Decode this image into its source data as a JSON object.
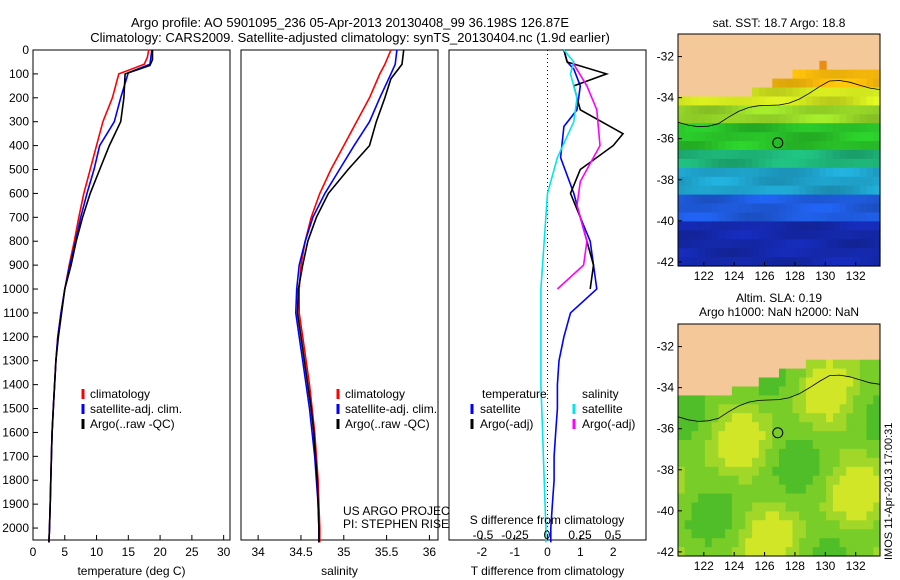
{
  "header": {
    "line1": "Argo profile: AO 5901095_236 05-Apr-2013 20130408_99 36.198S 126.87E",
    "line2": "Climatology: CARS2009. Satellite-adjusted climatology: synTS_20130404.nc (1.9d earlier)"
  },
  "colors": {
    "climatology": "#ff0000",
    "satellite": "#0000ff",
    "argo": "#000000",
    "sat_salinity": "#00e5ee",
    "argo_salinity": "#ff00ff",
    "land": "#f5c89a"
  },
  "chart_data": [
    {
      "type": "line",
      "id": "temperature",
      "xlabel": "temperature (deg C)",
      "xlim": [
        0,
        31
      ],
      "ylim": [
        2050,
        0
      ],
      "xticks": [
        0,
        5,
        10,
        15,
        20,
        25,
        30
      ],
      "yticks": [
        0,
        100,
        200,
        300,
        400,
        500,
        600,
        700,
        800,
        900,
        1000,
        1100,
        1200,
        1300,
        1400,
        1500,
        1600,
        1700,
        1800,
        1900,
        2000
      ],
      "legend": [
        "climatology",
        "satellite-adj. clim.",
        "Argo(..raw -QC)"
      ],
      "series": [
        {
          "name": "climatology",
          "color": "#ff0000",
          "points": [
            [
              18.2,
              0
            ],
            [
              18.0,
              30
            ],
            [
              17.5,
              60
            ],
            [
              13.5,
              100
            ],
            [
              12.5,
              200
            ],
            [
              11.0,
              300
            ],
            [
              10.0,
              400
            ],
            [
              9.0,
              500
            ],
            [
              8.0,
              600
            ],
            [
              7.2,
              700
            ],
            [
              6.5,
              800
            ],
            [
              5.7,
              900
            ],
            [
              5.0,
              1000
            ],
            [
              4.4,
              1100
            ],
            [
              3.9,
              1200
            ],
            [
              3.6,
              1300
            ],
            [
              3.4,
              1400
            ],
            [
              3.2,
              1500
            ],
            [
              3.0,
              1600
            ],
            [
              2.9,
              1700
            ],
            [
              2.8,
              1800
            ],
            [
              2.7,
              1900
            ],
            [
              2.6,
              2000
            ],
            [
              2.5,
              2060
            ]
          ]
        },
        {
          "name": "satellite-adj. clim.",
          "color": "#0000ff",
          "points": [
            [
              18.7,
              0
            ],
            [
              18.6,
              20
            ],
            [
              18.4,
              60
            ],
            [
              15.0,
              95
            ],
            [
              13.8,
              200
            ],
            [
              12.8,
              300
            ],
            [
              10.5,
              400
            ],
            [
              9.6,
              500
            ],
            [
              8.5,
              600
            ],
            [
              7.5,
              700
            ],
            [
              6.7,
              800
            ],
            [
              5.8,
              900
            ],
            [
              5.0,
              1000
            ],
            [
              4.4,
              1100
            ],
            [
              3.9,
              1200
            ],
            [
              3.6,
              1300
            ],
            [
              3.4,
              1400
            ],
            [
              3.2,
              1500
            ],
            [
              3.0,
              1600
            ],
            [
              2.9,
              1700
            ],
            [
              2.8,
              1800
            ],
            [
              2.7,
              1900
            ],
            [
              2.6,
              2000
            ],
            [
              2.5,
              2060
            ]
          ]
        },
        {
          "name": "Argo(..raw -QC)",
          "color": "#000000",
          "points": [
            [
              18.8,
              0
            ],
            [
              18.8,
              40
            ],
            [
              18.4,
              65
            ],
            [
              14.5,
              100
            ],
            [
              14.3,
              200
            ],
            [
              13.8,
              300
            ],
            [
              12.0,
              400
            ],
            [
              10.5,
              500
            ],
            [
              9.0,
              600
            ],
            [
              7.8,
              700
            ],
            [
              6.8,
              800
            ],
            [
              6.0,
              900
            ],
            [
              5.0,
              1000
            ],
            [
              4.5,
              1100
            ],
            [
              4.0,
              1200
            ],
            [
              3.6,
              1300
            ],
            [
              3.4,
              1400
            ],
            [
              3.2,
              1500
            ],
            [
              3.0,
              1600
            ],
            [
              2.9,
              1700
            ],
            [
              2.8,
              1800
            ],
            [
              2.7,
              1900
            ],
            [
              2.6,
              2000
            ],
            [
              2.5,
              2060
            ]
          ]
        }
      ]
    },
    {
      "type": "line",
      "id": "salinity",
      "xlabel": "salinity",
      "xlim": [
        33.8,
        36.1
      ],
      "ylim": [
        2050,
        0
      ],
      "xticks": [
        34,
        34.5,
        35,
        35.5,
        36
      ],
      "legend": [
        "climatology",
        "satellite-adj. clim.",
        "Argo(..raw -QC)"
      ],
      "annotation": [
        "US ARGO PROJECT",
        "PI: STEPHEN RISER"
      ],
      "series": [
        {
          "name": "climatology",
          "color": "#ff0000",
          "points": [
            [
              35.55,
              0
            ],
            [
              35.48,
              60
            ],
            [
              35.42,
              100
            ],
            [
              35.3,
              200
            ],
            [
              35.15,
              300
            ],
            [
              35.0,
              400
            ],
            [
              34.85,
              500
            ],
            [
              34.72,
              600
            ],
            [
              34.62,
              700
            ],
            [
              34.55,
              800
            ],
            [
              34.5,
              900
            ],
            [
              34.48,
              1000
            ],
            [
              34.48,
              1100
            ],
            [
              34.52,
              1200
            ],
            [
              34.56,
              1300
            ],
            [
              34.6,
              1400
            ],
            [
              34.63,
              1500
            ],
            [
              34.66,
              1600
            ],
            [
              34.68,
              1700
            ],
            [
              34.7,
              1800
            ],
            [
              34.71,
              1900
            ],
            [
              34.72,
              2000
            ],
            [
              34.72,
              2060
            ]
          ]
        },
        {
          "name": "satellite-adj. clim.",
          "color": "#0000ff",
          "points": [
            [
              35.62,
              0
            ],
            [
              35.6,
              60
            ],
            [
              35.55,
              100
            ],
            [
              35.42,
              200
            ],
            [
              35.3,
              300
            ],
            [
              35.12,
              400
            ],
            [
              34.95,
              500
            ],
            [
              34.78,
              600
            ],
            [
              34.64,
              700
            ],
            [
              34.55,
              800
            ],
            [
              34.48,
              900
            ],
            [
              34.45,
              1000
            ],
            [
              34.44,
              1100
            ],
            [
              34.48,
              1200
            ],
            [
              34.52,
              1300
            ],
            [
              34.56,
              1400
            ],
            [
              34.6,
              1500
            ],
            [
              34.63,
              1600
            ],
            [
              34.66,
              1700
            ],
            [
              34.68,
              1800
            ],
            [
              34.7,
              1900
            ],
            [
              34.71,
              2000
            ],
            [
              34.71,
              2060
            ]
          ]
        },
        {
          "name": "Argo(..raw -QC)",
          "color": "#000000",
          "points": [
            [
              35.7,
              0
            ],
            [
              35.68,
              60
            ],
            [
              35.55,
              120
            ],
            [
              35.48,
              200
            ],
            [
              35.38,
              300
            ],
            [
              35.3,
              400
            ],
            [
              35.05,
              500
            ],
            [
              34.82,
              600
            ],
            [
              34.68,
              700
            ],
            [
              34.58,
              800
            ],
            [
              34.52,
              900
            ],
            [
              34.47,
              1000
            ],
            [
              34.46,
              1100
            ],
            [
              34.5,
              1200
            ],
            [
              34.54,
              1300
            ],
            [
              34.58,
              1400
            ],
            [
              34.62,
              1500
            ],
            [
              34.65,
              1600
            ],
            [
              34.67,
              1700
            ],
            [
              34.69,
              1800
            ],
            [
              34.7,
              1900
            ],
            [
              34.71,
              2000
            ],
            [
              34.71,
              2060
            ]
          ]
        }
      ]
    },
    {
      "type": "line",
      "id": "difference",
      "xlabel": "T difference from climatology",
      "top_label": "S difference from climatology",
      "xlim": [
        -3,
        3
      ],
      "ylim": [
        2050,
        0
      ],
      "xticks": [
        -2,
        -1,
        0,
        1,
        2
      ],
      "xtick_labels": [
        "-2",
        "-1",
        "0",
        "1",
        "2"
      ],
      "top_ticks": [
        "-0.5",
        "-0.25",
        "0",
        "0.25",
        "0.5"
      ],
      "legend_headings": [
        "temperature",
        "salinity"
      ],
      "legend": [
        "satellite",
        "Argo(-adj)",
        "satellite",
        "Argo(-adj)"
      ],
      "series": [
        {
          "name": "satellite",
          "group": "temperature",
          "color": "#0000ff",
          "points": [
            [
              0.5,
              0
            ],
            [
              0.6,
              50
            ],
            [
              0.8,
              80
            ],
            [
              1.0,
              150
            ],
            [
              0.9,
              250
            ],
            [
              0.5,
              320
            ],
            [
              0.4,
              450
            ],
            [
              0.8,
              600
            ],
            [
              1.0,
              700
            ],
            [
              1.3,
              800
            ],
            [
              1.4,
              900
            ],
            [
              1.5,
              1000
            ],
            [
              0.7,
              1100
            ],
            [
              0.5,
              1200
            ],
            [
              0.35,
              1300
            ],
            [
              0.3,
              1400
            ],
            [
              0.3,
              1500
            ],
            [
              0.25,
              1600
            ],
            [
              0.2,
              1700
            ],
            [
              0.2,
              1800
            ],
            [
              0.15,
              1900
            ],
            [
              0.1,
              2000
            ],
            [
              0.1,
              2060
            ]
          ]
        },
        {
          "name": "Argo(-adj)",
          "group": "temperature",
          "color": "#000000",
          "points": [
            [
              0.5,
              0
            ],
            [
              0.6,
              50
            ],
            [
              1.8,
              100
            ],
            [
              0.8,
              150
            ],
            [
              1.0,
              250
            ],
            [
              2.3,
              350
            ],
            [
              2.0,
              400
            ],
            [
              1.0,
              500
            ],
            [
              0.7,
              600
            ],
            [
              1.0,
              700
            ],
            [
              1.2,
              800
            ],
            [
              1.4,
              900
            ],
            [
              1.3,
              1000
            ]
          ]
        },
        {
          "name": "satellite",
          "group": "salinity",
          "color": "#00e5ee",
          "points": [
            [
              0.5,
              0
            ],
            [
              0.8,
              50
            ],
            [
              0.7,
              100
            ],
            [
              0.9,
              200
            ],
            [
              0.8,
              300
            ],
            [
              0.3,
              450
            ],
            [
              0.0,
              600
            ],
            [
              -0.1,
              800
            ],
            [
              -0.2,
              1000
            ],
            [
              -0.2,
              1200
            ],
            [
              -0.2,
              1400
            ],
            [
              -0.15,
              1600
            ],
            [
              -0.1,
              1800
            ],
            [
              -0.05,
              2000
            ],
            [
              -0.05,
              2060
            ]
          ]
        },
        {
          "name": "Argo(-adj)",
          "group": "salinity",
          "color": "#ff00ff",
          "points": [
            [
              0.8,
              60
            ],
            [
              1.2,
              150
            ],
            [
              1.5,
              250
            ],
            [
              1.6,
              400
            ],
            [
              1.0,
              550
            ],
            [
              0.9,
              650
            ],
            [
              1.0,
              700
            ],
            [
              1.2,
              800
            ],
            [
              1.1,
              900
            ],
            [
              0.3,
              1000
            ]
          ]
        }
      ]
    },
    {
      "type": "heatmap",
      "id": "sst_map",
      "title": "sat. SST: 18.7  Argo: 18.8",
      "xticks": [
        "122",
        "124",
        "126",
        "128",
        "130",
        "132"
      ],
      "yticks": [
        "-32",
        "-34",
        "-36",
        "-38",
        "-40",
        "-42"
      ],
      "float_position": {
        "lon": 126.87,
        "lat": -36.198
      }
    },
    {
      "type": "heatmap",
      "id": "sla_map",
      "title_line1": "Altim. SLA: 0.19",
      "title_line2": "Argo h1000: NaN  h2000: NaN",
      "xticks": [
        "122",
        "124",
        "126",
        "128",
        "130",
        "132"
      ],
      "yticks": [
        "-32",
        "-34",
        "-36",
        "-38",
        "-40",
        "-42"
      ],
      "float_position": {
        "lon": 126.87,
        "lat": -36.198
      }
    }
  ],
  "footer": {
    "stamp": "IMOS 11-Apr-2013 17:00:31"
  }
}
